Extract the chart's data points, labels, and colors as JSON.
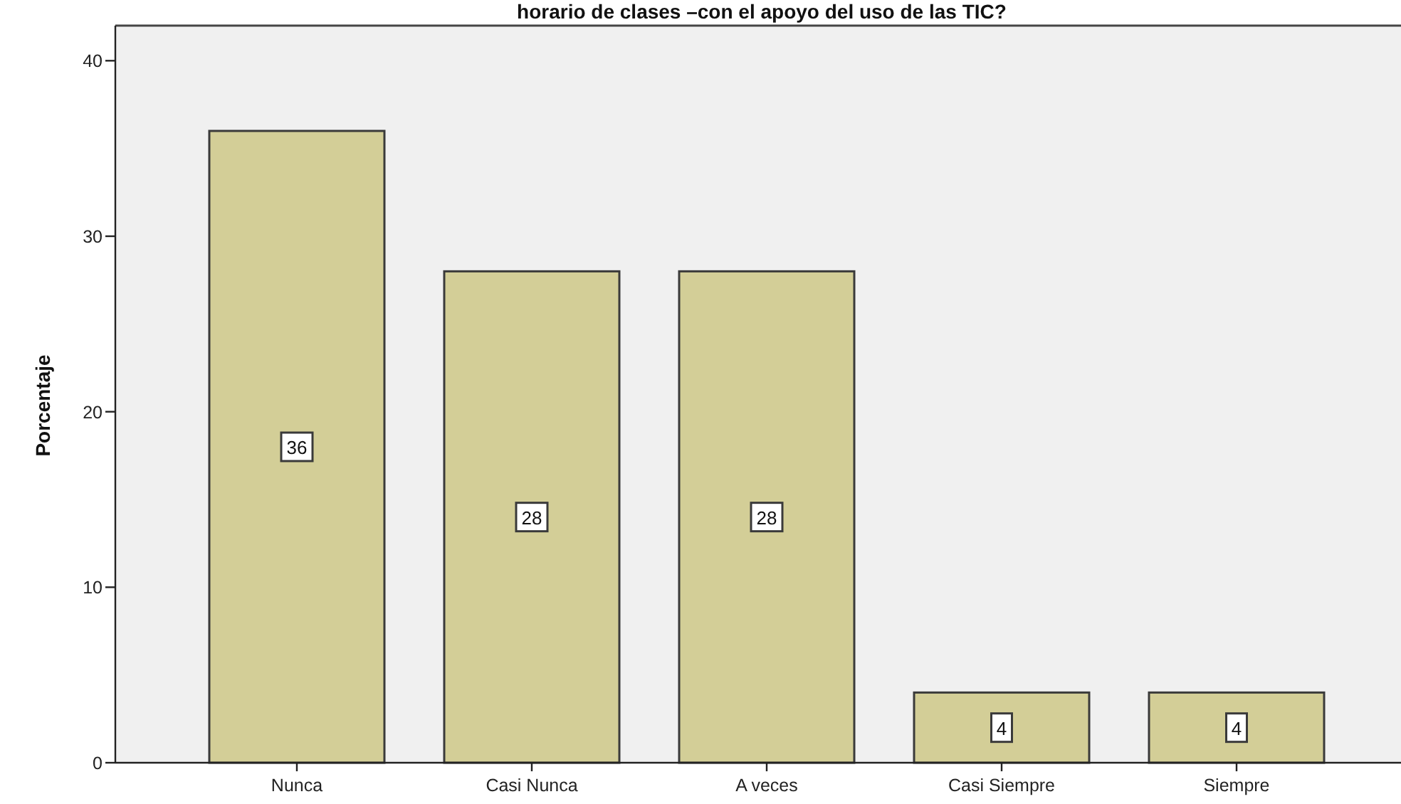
{
  "chart_data": {
    "type": "bar",
    "title": "horario de clases –con el apoyo del uso de las TIC?",
    "ylabel": "Porcentaje",
    "categories": [
      "Nunca",
      "Casi Nunca",
      "A veces",
      "Casi Siempre",
      "Siempre"
    ],
    "values": [
      36,
      28,
      28,
      4,
      4
    ],
    "color": "#d3ce97",
    "ylim": [
      0,
      42
    ],
    "yticks": [
      0,
      10,
      20,
      30,
      40
    ],
    "data_labels": true
  }
}
